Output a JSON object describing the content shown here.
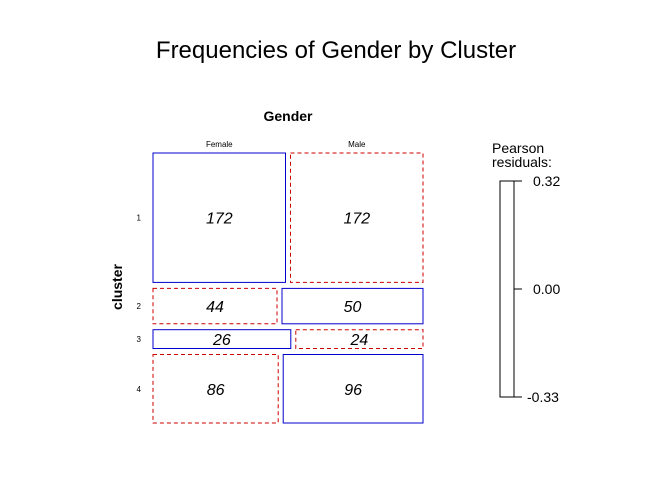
{
  "chart_data": {
    "type": "mosaic",
    "title": "Frequencies of Gender by Cluster",
    "column_variable": "Gender",
    "row_variable": "cluster",
    "columns": [
      "Female",
      "Male"
    ],
    "rows": [
      "1",
      "2",
      "3",
      "4"
    ],
    "counts": [
      [
        172,
        172
      ],
      [
        44,
        50
      ],
      [
        26,
        24
      ],
      [
        86,
        96
      ]
    ],
    "residual_sign": [
      [
        "positive",
        "negative"
      ],
      [
        "negative",
        "positive"
      ],
      [
        "positive",
        "negative"
      ],
      [
        "negative",
        "positive"
      ]
    ],
    "legend": {
      "title_line1": "Pearson",
      "title_line2": "residuals:",
      "ticks": [
        "0.32",
        "0.00",
        "-0.33"
      ]
    },
    "colors": {
      "positive": "#0000cc",
      "negative": "#cc0000"
    }
  }
}
